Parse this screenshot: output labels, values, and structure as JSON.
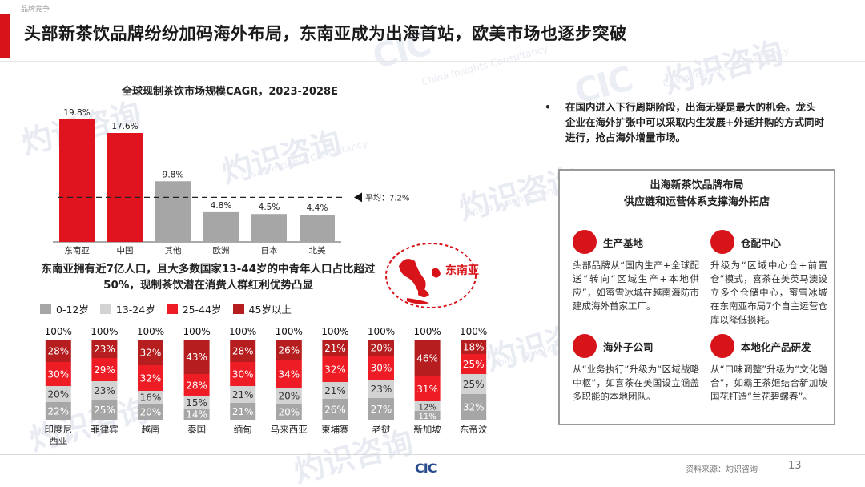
{
  "header": {
    "section_label": "品牌竞争",
    "title": "头部新茶饮品牌纷纷加码海外布局，东南亚成为出海首站，欧美市场也逐步突破"
  },
  "watermark": {
    "cn": "灼识咨询",
    "en": "China Insights Consultancy",
    "logo": "CIC"
  },
  "chart1": {
    "title": "全球现制茶饮市场规模CAGR，2023-2028E",
    "avg_label": "平均：7.2%"
  },
  "chart2": {
    "headline": "东南亚拥有近7亿人口，且大多数国家13-44岁的中青年人口占比超过50%，现制茶饮潜在消费人群红利优势凸显",
    "map_label": "东南亚"
  },
  "chart_data": [
    {
      "type": "bar",
      "title": "全球现制茶饮市场规模CAGR，2023-2028E",
      "categories": [
        "东南亚",
        "中国",
        "其他",
        "欧洲",
        "日本",
        "北美"
      ],
      "values": [
        19.8,
        17.6,
        9.8,
        4.8,
        4.5,
        4.4
      ],
      "value_labels": [
        "19.8%",
        "17.6%",
        "9.8%",
        "4.8%",
        "4.5%",
        "4.4%"
      ],
      "average": 7.2,
      "ylim": [
        0,
        22
      ],
      "colors": [
        "#e0141e",
        "#e0141e",
        "#a6a6a6",
        "#a6a6a6",
        "#a6a6a6",
        "#a6a6a6"
      ]
    },
    {
      "type": "bar",
      "stacked": true,
      "percent_stacked": true,
      "categories": [
        "印度尼西亚",
        "菲律宾",
        "越南",
        "泰国",
        "缅甸",
        "马来西亚",
        "柬埔寨",
        "老挝",
        "新加坡",
        "东帝汶"
      ],
      "total_labels": [
        "100%",
        "100%",
        "100%",
        "100%",
        "100%",
        "100%",
        "100%",
        "100%",
        "100%",
        "100%"
      ],
      "series": [
        {
          "name": "0-12岁",
          "color": "#a6a6a6",
          "values": [
            22,
            25,
            20,
            14,
            21,
            20,
            26,
            27,
            11,
            32
          ]
        },
        {
          "name": "13-24岁",
          "color": "#d3d3d3",
          "values": [
            20,
            23,
            16,
            15,
            21,
            20,
            21,
            23,
            12,
            25
          ]
        },
        {
          "name": "25-44岁",
          "color": "#ee1c25",
          "values": [
            30,
            29,
            32,
            28,
            30,
            34,
            32,
            30,
            31,
            25
          ]
        },
        {
          "name": "45岁以上",
          "color": "#b51d1e",
          "values": [
            28,
            23,
            32,
            43,
            28,
            26,
            21,
            20,
            46,
            18
          ]
        }
      ],
      "ylim": [
        0,
        100
      ]
    }
  ],
  "right": {
    "bullet": "在国内进入下行周期阶段，出海无疑是最大的机会。龙头企业在海外扩张中可以采取内生发展+外延并购的方式同时进行，抢占海外增量市场。",
    "panel_title_1": "出海新茶饮品牌布局",
    "panel_title_2": "供应链和运营体系支撑海外拓店",
    "items": [
      {
        "title": "生产基地",
        "icon": "factory-icon",
        "text": "头部品牌从“国内生产+全球配送”转向“区域生产+本地供应”，如蜜雪冰城在越南海防市建成海外首家工厂。"
      },
      {
        "title": "仓配中心",
        "icon": "warehouse-icon",
        "text": "升级为“区域中心仓+前置仓”模式，喜茶在美英马澳设立多个仓储中心，蜜雪冰城在东南亚布局7个自主运营仓库以降低损耗。"
      },
      {
        "title": "海外子公司",
        "icon": "office-building-icon",
        "text": "从“业务执行”升级为“区域战略中枢”，如喜茶在美国设立涵盖多职能的本地团队。"
      },
      {
        "title": "本地化产品研发",
        "icon": "drink-cup-icon",
        "text": "从“口味调整”升级为“文化融合”，如霸王茶姬结合新加坡国花打造“兰花碧螺春”。"
      }
    ]
  },
  "footer": {
    "logo": "CIC",
    "source": "资料来源：灼识咨询",
    "page": "13"
  }
}
